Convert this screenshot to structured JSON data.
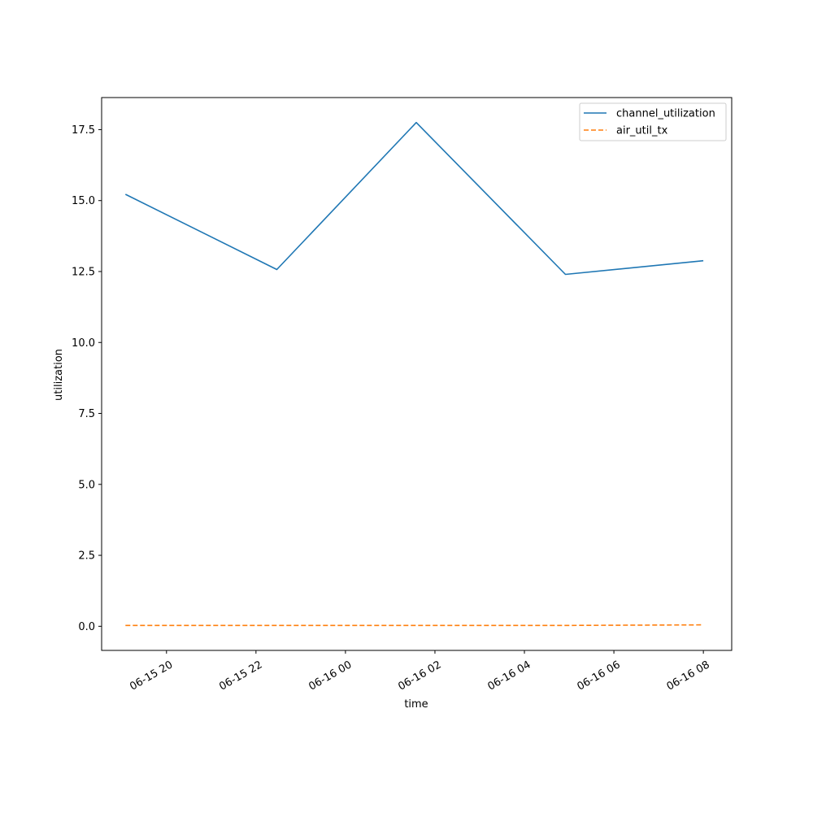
{
  "chart_data": {
    "type": "line",
    "xlabel": "time",
    "ylabel": "utilization",
    "x_type": "datetime",
    "xlim": [
      "2024-06-15T18:33",
      "2024-06-16T08:38"
    ],
    "ylim": [
      -0.85,
      18.63
    ],
    "x_ticks": [
      {
        "value": "2024-06-15T20:00",
        "label": "06-15 20"
      },
      {
        "value": "2024-06-15T22:00",
        "label": "06-15 22"
      },
      {
        "value": "2024-06-16T00:00",
        "label": "06-16 00"
      },
      {
        "value": "2024-06-16T02:00",
        "label": "06-16 02"
      },
      {
        "value": "2024-06-16T04:00",
        "label": "06-16 04"
      },
      {
        "value": "2024-06-16T06:00",
        "label": "06-16 06"
      },
      {
        "value": "2024-06-16T08:00",
        "label": "06-16 08"
      }
    ],
    "y_ticks": [
      {
        "value": 0.0,
        "label": "0.0"
      },
      {
        "value": 2.5,
        "label": "2.5"
      },
      {
        "value": 5.0,
        "label": "5.0"
      },
      {
        "value": 7.5,
        "label": "7.5"
      },
      {
        "value": 10.0,
        "label": "10.0"
      },
      {
        "value": 12.5,
        "label": "12.5"
      },
      {
        "value": 15.0,
        "label": "15.0"
      },
      {
        "value": 17.5,
        "label": "17.5"
      }
    ],
    "grid": false,
    "legend_position": "top-right",
    "series": [
      {
        "name": "channel_utilization",
        "color": "#1f77b4",
        "style": "solid",
        "x": [
          "2024-06-15T19:05",
          "2024-06-15T22:28",
          "2024-06-16T01:35",
          "2024-06-16T04:55",
          "2024-06-16T08:00"
        ],
        "y": [
          15.22,
          12.57,
          17.75,
          12.4,
          12.88
        ]
      },
      {
        "name": "air_util_tx",
        "color": "#ff7f0e",
        "style": "dashed",
        "x": [
          "2024-06-15T19:05",
          "2024-06-15T22:28",
          "2024-06-16T01:35",
          "2024-06-16T04:55",
          "2024-06-16T08:00"
        ],
        "y": [
          0.03,
          0.03,
          0.03,
          0.03,
          0.05
        ]
      }
    ]
  }
}
